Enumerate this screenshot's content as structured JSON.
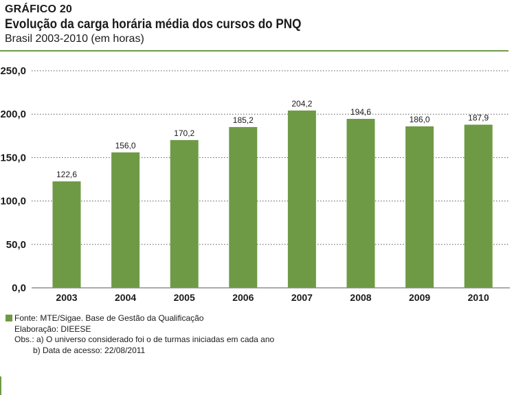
{
  "colors": {
    "accent": "#6f9a45",
    "bar": "#6f9a45",
    "grid": "#555555",
    "text": "#1a1a1a"
  },
  "header": {
    "label": "GRÁFICO 20",
    "title": "Evolução da carga horária média dos cursos do PNQ",
    "subtitle": "Brasil 2003-2010 (em horas)"
  },
  "chart_data": {
    "type": "bar",
    "title": "Evolução da carga horária média dos cursos do PNQ",
    "subtitle": "Brasil 2003-2010 (em horas)",
    "categories": [
      "2003",
      "2004",
      "2005",
      "2006",
      "2007",
      "2008",
      "2009",
      "2010"
    ],
    "values": [
      122.6,
      156.0,
      170.2,
      185.2,
      204.2,
      194.6,
      186.0,
      187.9
    ],
    "value_labels": [
      "122,6",
      "156,0",
      "170,2",
      "185,2",
      "204,2",
      "194,6",
      "186,0",
      "187,9"
    ],
    "ylim": [
      0,
      250
    ],
    "yticks": [
      0,
      50,
      100,
      150,
      200,
      250
    ],
    "ytick_labels": [
      "0,0",
      "50,0",
      "100,0",
      "150,0",
      "200,0",
      "250,0"
    ],
    "xlabel": "",
    "ylabel": "",
    "grid": "dotted-horizontal",
    "legend": "bottom-left"
  },
  "footer": {
    "source": "Fonte: MTE/Sigae. Base de Gestão da Qualificação",
    "elaboration": "Elaboração: DIEESE",
    "obs_a": "Obs.: a) O universo considerado foi o de turmas iniciadas em cada ano",
    "obs_b": "b) Data de acesso: 22/08/2011"
  }
}
